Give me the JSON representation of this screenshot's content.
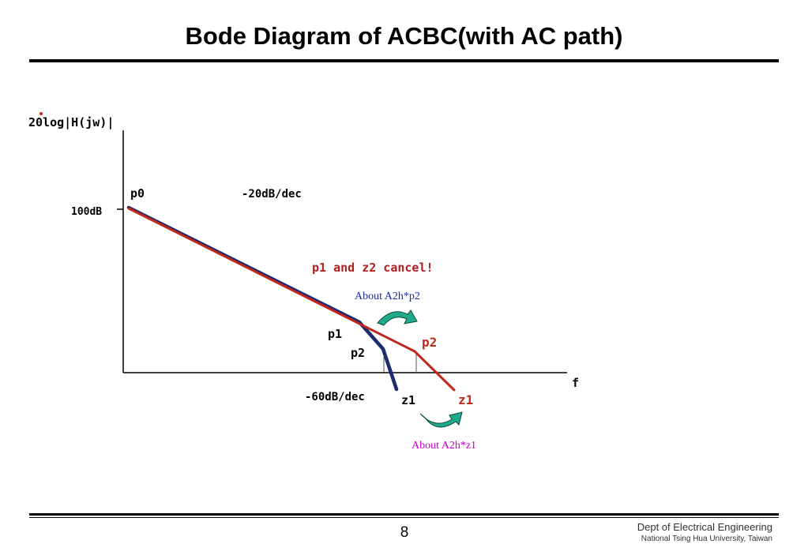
{
  "slide": {
    "title": "Bode Diagram of ACBC(with AC path)",
    "page_number": "8",
    "footer_dept": "Dept of Electrical Engineering",
    "footer_univ": "National Tsing Hua University, Taiwan"
  },
  "diagram": {
    "y_axis_label": "20log|H(jw)|",
    "x_axis_label": "f",
    "gain_label": "100dB",
    "slope_20_label": "-20dB/dec",
    "slope_60_label": "-60dB/dec",
    "cancel_label": "p1 and z2 cancel!",
    "about_p2_label": "About A2h*p2",
    "about_z1_label": "About A2h*z1",
    "pole_labels": {
      "p0": "p0",
      "p1": "p1",
      "p2_blue": "p2",
      "p2_red": "p2",
      "z1_blue": "z1",
      "z1_red": "z1"
    },
    "colors": {
      "red_curve": "#c0281c",
      "blue_curve": "#1c2a6e",
      "cancel_text": "#b02020",
      "about_p2_text": "#1a2aa0",
      "about_z1_text": "#c000c0",
      "arrow_fill": "#20a88a"
    }
  }
}
